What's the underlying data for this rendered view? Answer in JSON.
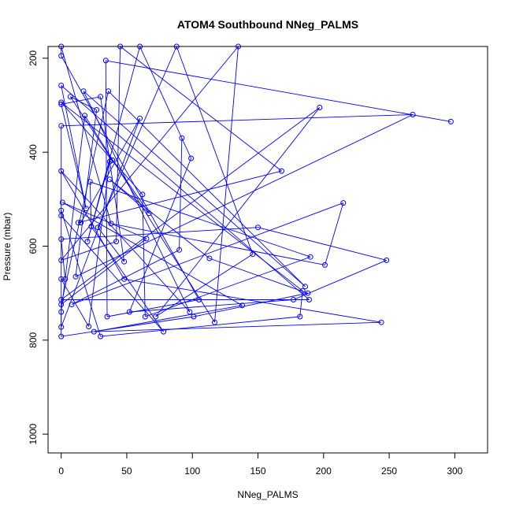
{
  "chart_data": {
    "type": "line",
    "title": "ATOM4 Southbound NNeg_PALMS",
    "xlabel": "NNeg_PALMS",
    "ylabel": "Pressure (mbar)",
    "xlim": [
      -10,
      325
    ],
    "ylim": [
      1040,
      175
    ],
    "y_reversed": true,
    "x_ticks": [
      0,
      50,
      100,
      150,
      200,
      250,
      300
    ],
    "y_ticks": [
      200,
      400,
      600,
      800,
      1000
    ],
    "x_tick_labels": [
      "0",
      "50",
      "100",
      "150",
      "200",
      "250",
      "300"
    ],
    "y_tick_labels": [
      "200",
      "400",
      "600",
      "800",
      "1000"
    ],
    "grid": false,
    "legend": "none",
    "series": [
      {
        "color": "#0000ff",
        "marker": "open-circle",
        "points": [
          [
            0,
            792
          ],
          [
            0,
            772
          ],
          [
            0,
            740
          ],
          [
            0,
            724
          ],
          [
            0,
            714
          ],
          [
            0,
            670
          ],
          [
            0,
            630
          ],
          [
            0,
            585
          ],
          [
            0,
            535
          ],
          [
            0,
            524
          ],
          [
            0,
            440
          ],
          [
            0,
            344
          ],
          [
            0,
            298
          ],
          [
            0,
            294
          ],
          [
            0,
            258
          ],
          [
            0,
            195
          ],
          [
            0,
            175
          ],
          [
            1,
            507
          ],
          [
            3,
            670
          ],
          [
            7,
            282
          ],
          [
            8,
            724
          ],
          [
            11,
            665
          ],
          [
            13,
            550
          ],
          [
            15,
            550
          ],
          [
            17,
            270
          ],
          [
            19,
            520
          ],
          [
            20,
            590
          ],
          [
            18,
            322
          ],
          [
            21,
            771
          ],
          [
            22,
            463
          ],
          [
            23,
            558
          ],
          [
            25,
            782
          ],
          [
            27,
            310
          ],
          [
            28,
            560
          ],
          [
            30,
            792
          ],
          [
            30,
            282
          ],
          [
            34,
            205
          ],
          [
            35,
            750
          ],
          [
            36,
            270
          ],
          [
            37,
            420
          ],
          [
            37,
            458
          ],
          [
            38,
            552
          ],
          [
            39,
            417
          ],
          [
            42,
            590
          ],
          [
            45,
            175
          ],
          [
            48,
            670
          ],
          [
            48,
            633
          ],
          [
            52,
            740
          ],
          [
            60,
            328
          ],
          [
            60,
            175
          ],
          [
            62,
            490
          ],
          [
            64,
            750
          ],
          [
            65,
            584
          ],
          [
            67,
            530
          ],
          [
            72,
            750
          ],
          [
            78,
            782
          ],
          [
            88,
            175
          ],
          [
            90,
            608
          ],
          [
            92,
            370
          ],
          [
            98,
            740
          ],
          [
            99,
            413
          ],
          [
            101,
            750
          ],
          [
            105,
            714
          ],
          [
            113,
            626
          ],
          [
            117,
            762
          ],
          [
            135,
            175
          ],
          [
            138,
            726
          ],
          [
            146,
            617
          ],
          [
            150,
            560
          ],
          [
            168,
            440
          ],
          [
            177,
            714
          ],
          [
            182,
            750
          ],
          [
            184,
            695
          ],
          [
            186,
            686
          ],
          [
            188,
            700
          ],
          [
            189,
            714
          ],
          [
            190,
            623
          ],
          [
            197,
            305
          ],
          [
            201,
            640
          ],
          [
            215,
            508
          ],
          [
            244,
            762
          ],
          [
            248,
            630
          ],
          [
            268,
            320
          ],
          [
            297,
            335
          ]
        ]
      }
    ]
  }
}
